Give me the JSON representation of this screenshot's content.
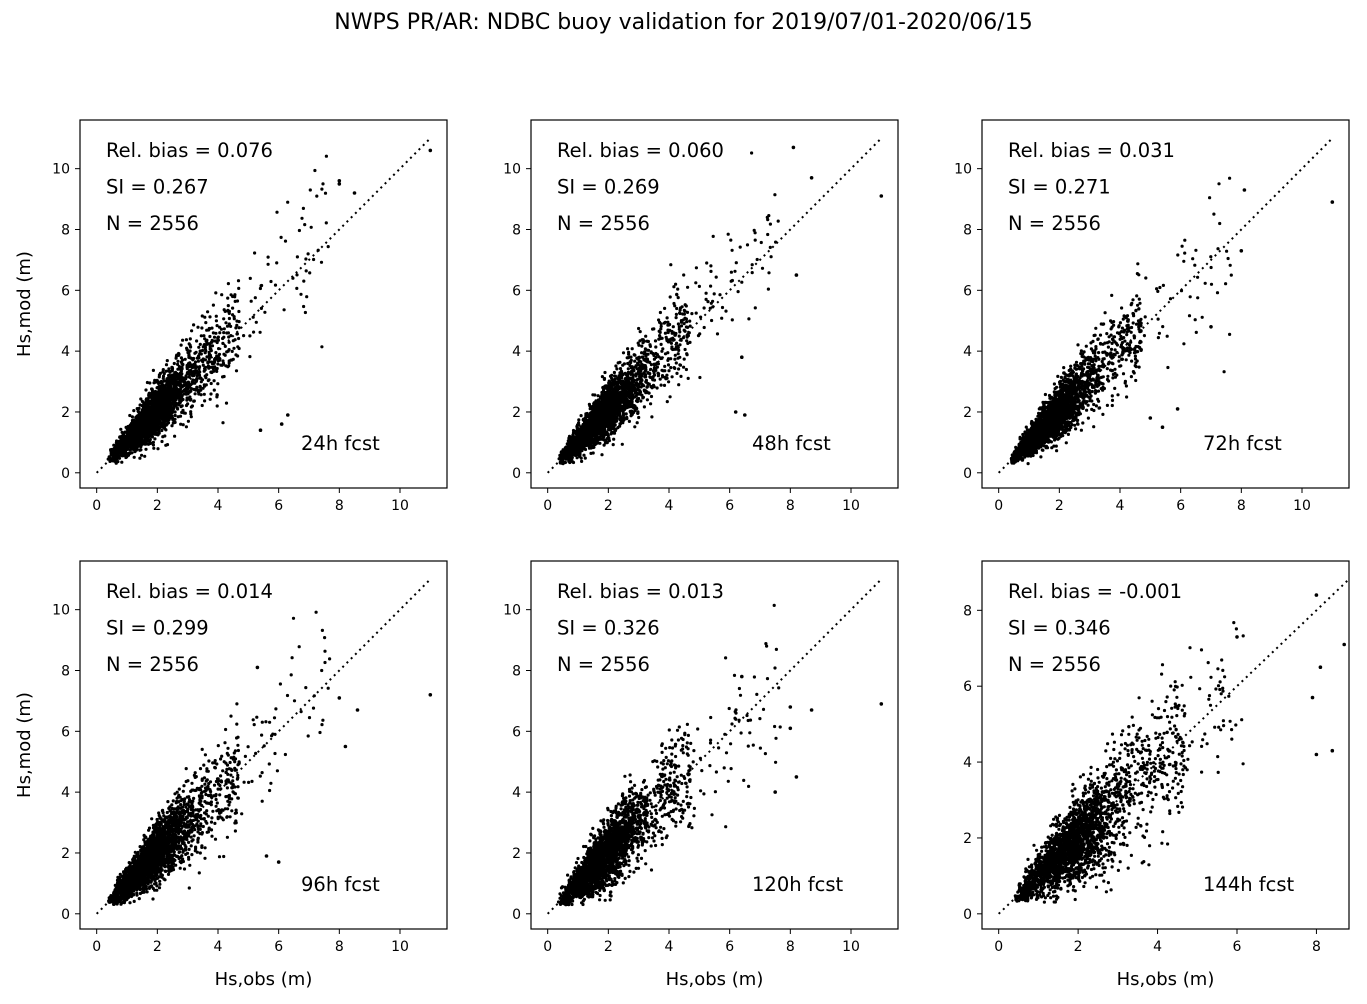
{
  "title": "NWPS PR/AR: NDBC buoy validation for 2019/07/01-2020/06/15",
  "chart_data": [
    {
      "type": "scatter",
      "forecast_label": "24h fcst",
      "stats": [
        "Rel. bias =  0.076",
        "SI =  0.267",
        "N = 2556"
      ],
      "xlabel": "",
      "ylabel": "Hs,mod (m)",
      "xlim": [
        -0.55,
        11.55
      ],
      "ylim": [
        -0.5,
        11.6
      ],
      "xticks": [
        0,
        2,
        4,
        6,
        8,
        10
      ],
      "yticks": [
        0,
        2,
        4,
        6,
        8,
        10
      ],
      "n_points": 2556,
      "bias": 0.076,
      "si": 0.267,
      "max_val": 11.0,
      "one_to_one_line": true,
      "highlight_points": [
        [
          8.0,
          9.6
        ],
        [
          8.0,
          9.5
        ],
        [
          8.5,
          9.2
        ],
        [
          11.0,
          10.6
        ],
        [
          6.1,
          1.6
        ],
        [
          6.3,
          1.9
        ],
        [
          5.4,
          1.4
        ]
      ]
    },
    {
      "type": "scatter",
      "forecast_label": "48h fcst",
      "stats": [
        "Rel. bias =  0.060",
        "SI =  0.269",
        "N = 2556"
      ],
      "xlabel": "",
      "ylabel": "",
      "xlim": [
        -0.55,
        11.55
      ],
      "ylim": [
        -0.5,
        11.6
      ],
      "xticks": [
        0,
        2,
        4,
        6,
        8,
        10
      ],
      "yticks": [
        0,
        2,
        4,
        6,
        8,
        10
      ],
      "n_points": 2556,
      "bias": 0.06,
      "si": 0.269,
      "max_val": 11.0,
      "one_to_one_line": true,
      "highlight_points": [
        [
          8.1,
          10.7
        ],
        [
          8.7,
          9.7
        ],
        [
          11.0,
          9.1
        ],
        [
          8.2,
          6.5
        ],
        [
          6.5,
          1.9
        ],
        [
          6.2,
          2.0
        ],
        [
          6.4,
          3.8
        ]
      ]
    },
    {
      "type": "scatter",
      "forecast_label": "72h fcst",
      "stats": [
        "Rel. bias =  0.031",
        "SI =  0.271",
        "N = 2556"
      ],
      "xlabel": "",
      "ylabel": "",
      "xlim": [
        -0.55,
        11.55
      ],
      "ylim": [
        -0.5,
        11.6
      ],
      "xticks": [
        0,
        2,
        4,
        6,
        8,
        10
      ],
      "yticks": [
        0,
        2,
        4,
        6,
        8,
        10
      ],
      "n_points": 2556,
      "bias": 0.031,
      "si": 0.271,
      "max_val": 11.0,
      "one_to_one_line": true,
      "highlight_points": [
        [
          8.1,
          9.3
        ],
        [
          11.0,
          8.9
        ],
        [
          8.0,
          7.3
        ],
        [
          7.0,
          4.8
        ],
        [
          5.9,
          2.1
        ],
        [
          5.4,
          1.5
        ],
        [
          5.0,
          1.8
        ]
      ]
    },
    {
      "type": "scatter",
      "forecast_label": "96h fcst",
      "stats": [
        "Rel. bias =  0.014",
        "SI =  0.299",
        "N = 2556"
      ],
      "xlabel": "Hs,obs (m)",
      "ylabel": "Hs,mod (m)",
      "xlim": [
        -0.55,
        11.55
      ],
      "ylim": [
        -0.5,
        11.6
      ],
      "xticks": [
        0,
        2,
        4,
        6,
        8,
        10
      ],
      "yticks": [
        0,
        2,
        4,
        6,
        8,
        10
      ],
      "n_points": 2556,
      "bias": 0.014,
      "si": 0.299,
      "max_val": 11.0,
      "one_to_one_line": true,
      "highlight_points": [
        [
          5.3,
          8.1
        ],
        [
          11.0,
          7.2
        ],
        [
          8.0,
          7.1
        ],
        [
          8.6,
          6.7
        ],
        [
          8.2,
          5.5
        ],
        [
          5.6,
          1.9
        ],
        [
          6.0,
          1.7
        ]
      ]
    },
    {
      "type": "scatter",
      "forecast_label": "120h fcst",
      "stats": [
        "Rel. bias =  0.013",
        "SI =  0.326",
        "N = 2556"
      ],
      "xlabel": "Hs,obs (m)",
      "ylabel": "",
      "xlim": [
        -0.55,
        11.55
      ],
      "ylim": [
        -0.5,
        11.6
      ],
      "xticks": [
        0,
        2,
        4,
        6,
        8,
        10
      ],
      "yticks": [
        0,
        2,
        4,
        6,
        8,
        10
      ],
      "n_points": 2556,
      "bias": 0.013,
      "si": 0.326,
      "max_val": 11.0,
      "one_to_one_line": true,
      "highlight_points": [
        [
          11.0,
          6.9
        ],
        [
          8.0,
          6.8
        ],
        [
          8.7,
          6.7
        ],
        [
          8.0,
          6.1
        ],
        [
          7.5,
          4.0
        ],
        [
          8.2,
          4.5
        ],
        [
          6.4,
          7.8
        ]
      ]
    },
    {
      "type": "scatter",
      "forecast_label": "144h fcst",
      "stats": [
        "Rel. bias = -0.001",
        "SI =  0.346",
        "N = 2556"
      ],
      "xlabel": "Hs,obs (m)",
      "ylabel": "",
      "xlim": [
        -0.42,
        8.82
      ],
      "ylim": [
        -0.4,
        9.3
      ],
      "xticks": [
        0,
        2,
        4,
        6,
        8
      ],
      "yticks": [
        0,
        2,
        4,
        6,
        8
      ],
      "n_points": 2556,
      "bias": -0.001,
      "si": 0.346,
      "max_val": 8.8,
      "one_to_one_line": true,
      "highlight_points": [
        [
          8.0,
          8.4
        ],
        [
          8.7,
          7.1
        ],
        [
          8.1,
          6.5
        ],
        [
          7.9,
          5.7
        ],
        [
          8.4,
          4.3
        ],
        [
          8.0,
          4.2
        ],
        [
          6.0,
          7.3
        ]
      ]
    }
  ]
}
